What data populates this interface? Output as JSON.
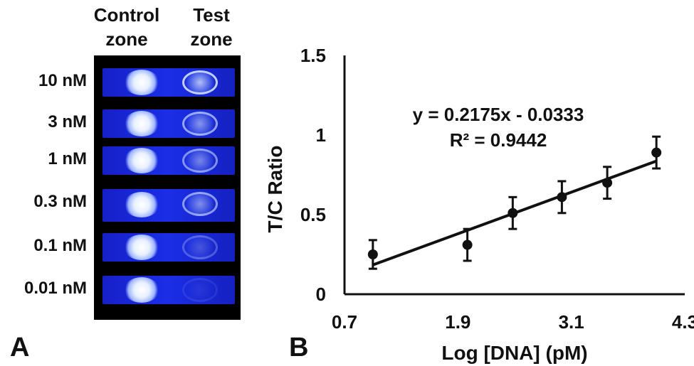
{
  "panel_a": {
    "letter": "A",
    "column_labels": [
      "Control\nzone",
      "Test\nzone"
    ],
    "column_line1": [
      "Control",
      "Test"
    ],
    "column_line2": [
      "zone",
      "zone"
    ],
    "rows": [
      {
        "label": "10 nM",
        "test_intensity": 0.95
      },
      {
        "label": "3 nM",
        "test_intensity": 0.7
      },
      {
        "label": "1 nM",
        "test_intensity": 0.6
      },
      {
        "label": "0.3 nM",
        "test_intensity": 0.65
      },
      {
        "label": "0.1 nM",
        "test_intensity": 0.3
      },
      {
        "label": "0.01 nM",
        "test_intensity": 0.1
      }
    ]
  },
  "panel_b": {
    "letter": "B",
    "equation": "y = 0.2175x - 0.0333",
    "r_squared": "R² = 0.9442"
  },
  "chart_data": {
    "type": "scatter",
    "xlabel": "Log [DNA] (pM)",
    "ylabel": "T/C Ratio",
    "xlim": [
      0.7,
      4.3
    ],
    "ylim": [
      0,
      1.5
    ],
    "xticks": [
      0.7,
      1.9,
      3.1,
      4.3
    ],
    "xtick_labels": [
      "0.7",
      "1.9",
      "3.1",
      "4.3"
    ],
    "yticks": [
      0,
      0.5,
      1,
      1.5
    ],
    "ytick_labels": [
      "0",
      "0.5",
      "1",
      "1.5"
    ],
    "grid": false,
    "series": [
      {
        "x": [
          1.0,
          2.0,
          2.48,
          3.0,
          3.48,
          4.0
        ],
        "y": [
          0.25,
          0.31,
          0.51,
          0.61,
          0.7,
          0.89
        ],
        "yerr": [
          0.09,
          0.1,
          0.1,
          0.1,
          0.1,
          0.1
        ]
      }
    ],
    "trendline": {
      "slope": 0.2175,
      "intercept": -0.0333,
      "x_range": [
        1.0,
        4.0
      ]
    },
    "color": "#111111"
  }
}
